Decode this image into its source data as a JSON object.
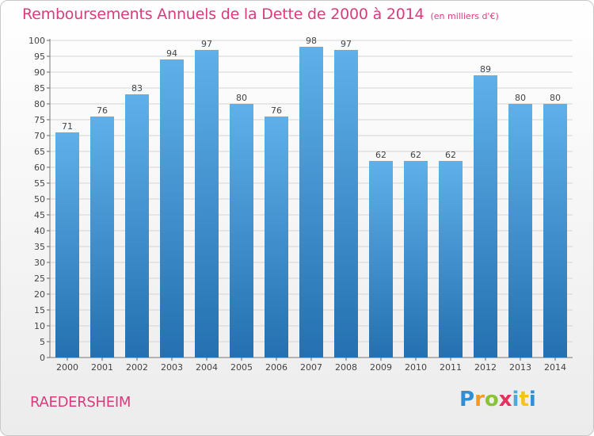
{
  "header": {
    "title": "Remboursements Annuels de la Dette de 2000 à 2014",
    "unit": "(en milliers d'€)"
  },
  "footer": {
    "place": "RAEDERSHEIM",
    "logo_letters": [
      "P",
      "r",
      "o",
      "x",
      "i",
      "t",
      "i"
    ]
  },
  "colors": {
    "accent": "#d83c7e",
    "bar_top": "#5fb0ea",
    "bar_bottom": "#2470b0",
    "grid": "#d4d4d4"
  },
  "chart_data": {
    "type": "bar",
    "categories": [
      "2000",
      "2001",
      "2002",
      "2003",
      "2004",
      "2005",
      "2006",
      "2007",
      "2008",
      "2009",
      "2010",
      "2011",
      "2012",
      "2013",
      "2014"
    ],
    "values": [
      71,
      76,
      83,
      94,
      97,
      80,
      76,
      98,
      97,
      62,
      62,
      62,
      89,
      80,
      80
    ],
    "title": "Remboursements Annuels de la Dette de 2000 à 2014",
    "ylim": [
      0,
      100
    ],
    "yticks": [
      0,
      5,
      10,
      15,
      20,
      25,
      30,
      35,
      40,
      45,
      50,
      55,
      60,
      65,
      70,
      75,
      80,
      85,
      90,
      95,
      100
    ],
    "grid": true,
    "legend": "none"
  }
}
